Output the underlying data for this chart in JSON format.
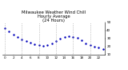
{
  "title": "Milwaukee Weather Wind Chill\nHourly Average\n(24 Hours)",
  "hours": [
    0,
    1,
    2,
    3,
    4,
    5,
    6,
    7,
    8,
    9,
    10,
    11,
    12,
    13,
    14,
    15,
    16,
    17,
    18,
    19,
    20,
    21,
    22,
    23
  ],
  "wind_chill": [
    43,
    39,
    35,
    32,
    29,
    27,
    25,
    23,
    22,
    21,
    22,
    24,
    27,
    30,
    32,
    33,
    32,
    31,
    28,
    24,
    22,
    20,
    19,
    17
  ],
  "point_color": "#0000bb",
  "bg_color": "#ffffff",
  "grid_color": "#999999",
  "ylim_min": 10,
  "ylim_max": 50,
  "ytick_values": [
    10,
    20,
    30,
    40,
    50
  ],
  "xtick_step": 2,
  "title_fontsize": 3.8,
  "tick_fontsize": 3.0,
  "marker_size": 1.5
}
